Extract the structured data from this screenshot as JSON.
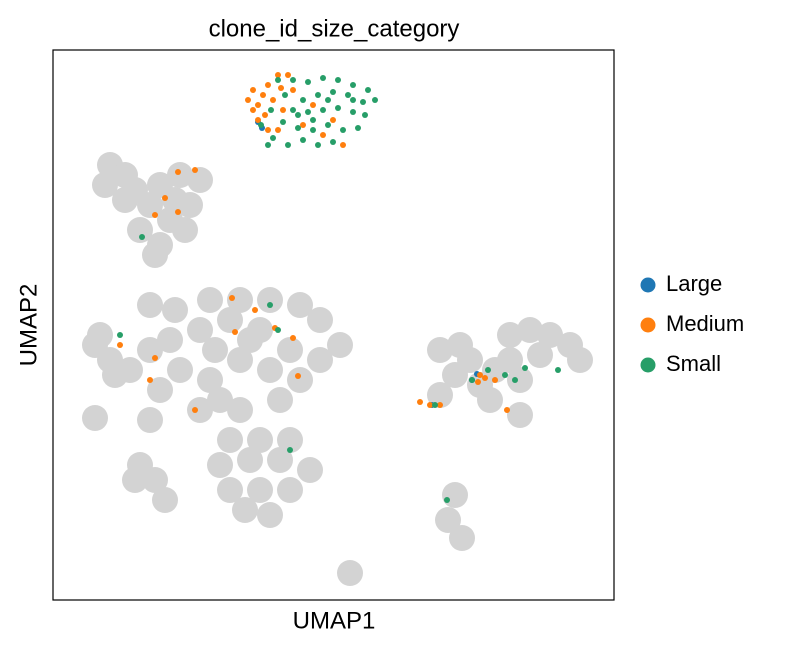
{
  "chart_data": {
    "type": "scatter",
    "title": "clone_id_size_category",
    "x_label": "UMAP1",
    "y_label": "UMAP2",
    "xlim": [
      0,
      561
    ],
    "ylim": [
      0,
      550
    ],
    "legend": "right",
    "background": {
      "color": "#d3d3d3",
      "x": [
        57,
        72,
        52,
        82,
        107,
        127,
        147,
        122,
        137,
        117,
        132,
        97,
        87,
        107,
        102,
        72,
        97,
        122,
        157,
        187,
        217,
        247,
        267,
        287,
        267,
        237,
        207,
        177,
        147,
        117,
        97,
        77,
        127,
        157,
        187,
        217,
        247,
        167,
        187,
        147,
        227,
        107,
        197,
        162,
        42,
        57,
        62,
        47,
        177,
        207,
        237,
        167,
        197,
        227,
        257,
        177,
        207,
        237,
        192,
        217,
        87,
        102,
        82,
        112,
        97,
        42,
        387,
        407,
        417,
        402,
        427,
        437,
        457,
        477,
        497,
        517,
        527,
        487,
        457,
        467,
        442,
        387,
        467,
        402,
        395,
        409,
        297
      ],
      "y": [
        435,
        425,
        415,
        410,
        415,
        425,
        420,
        400,
        395,
        380,
        370,
        395,
        370,
        355,
        345,
        400,
        295,
        290,
        300,
        300,
        300,
        295,
        280,
        255,
        240,
        250,
        270,
        280,
        270,
        260,
        250,
        230,
        230,
        220,
        240,
        230,
        220,
        200,
        190,
        190,
        200,
        210,
        260,
        250,
        255,
        240,
        225,
        265,
        160,
        160,
        160,
        135,
        140,
        140,
        130,
        110,
        110,
        110,
        90,
        85,
        135,
        120,
        120,
        100,
        180,
        182,
        250,
        255,
        240,
        225,
        215,
        200,
        265,
        270,
        265,
        255,
        240,
        245,
        240,
        220,
        230,
        205,
        185,
        105,
        80,
        62,
        27
      ]
    },
    "series": [
      {
        "name": "Large",
        "color": "#1f77b4",
        "x": [
          209,
          205,
          419,
          424,
          379
        ],
        "y": [
          472,
          478,
          220,
          226,
          195
        ]
      },
      {
        "name": "Medium",
        "color": "#ff7f0e",
        "x": [
          200,
          205,
          210,
          215,
          225,
          220,
          212,
          200,
          205,
          215,
          225,
          230,
          228,
          240,
          270,
          280,
          290,
          260,
          195,
          235,
          250,
          125,
          142,
          112,
          125,
          102,
          179,
          202,
          222,
          240,
          182,
          102,
          67,
          245,
          97,
          142,
          427,
          432,
          425,
          442,
          377,
          387,
          454,
          367
        ],
        "y": [
          510,
          495,
          505,
          515,
          525,
          500,
          485,
          490,
          480,
          470,
          470,
          490,
          512,
          510,
          465,
          480,
          455,
          495,
          500,
          525,
          475,
          428,
          430,
          402,
          388,
          385,
          302,
          290,
          272,
          262,
          268,
          242,
          255,
          224,
          220,
          190,
          225,
          222,
          218,
          220,
          195,
          195,
          190,
          198
        ]
      },
      {
        "name": "Small",
        "color": "#279e68",
        "x": [
          240,
          255,
          270,
          285,
          300,
          315,
          322,
          310,
          295,
          280,
          265,
          250,
          240,
          255,
          270,
          285,
          300,
          312,
          230,
          245,
          260,
          275,
          290,
          305,
          250,
          265,
          280,
          235,
          220,
          225,
          232,
          218,
          208,
          215,
          245,
          300,
          275,
          260,
          217,
          225,
          89,
          67,
          237,
          394,
          452,
          462,
          472,
          505,
          419,
          382,
          435
        ],
        "y": [
          520,
          518,
          522,
          520,
          515,
          510,
          500,
          498,
          505,
          508,
          505,
          500,
          490,
          488,
          490,
          492,
          488,
          485,
          478,
          472,
          470,
          475,
          470,
          472,
          460,
          455,
          458,
          455,
          462,
          520,
          505,
          490,
          475,
          455,
          485,
          500,
          500,
          480,
          295,
          270,
          363,
          265,
          150,
          100,
          225,
          220,
          232,
          230,
          220,
          195,
          230
        ]
      }
    ]
  }
}
